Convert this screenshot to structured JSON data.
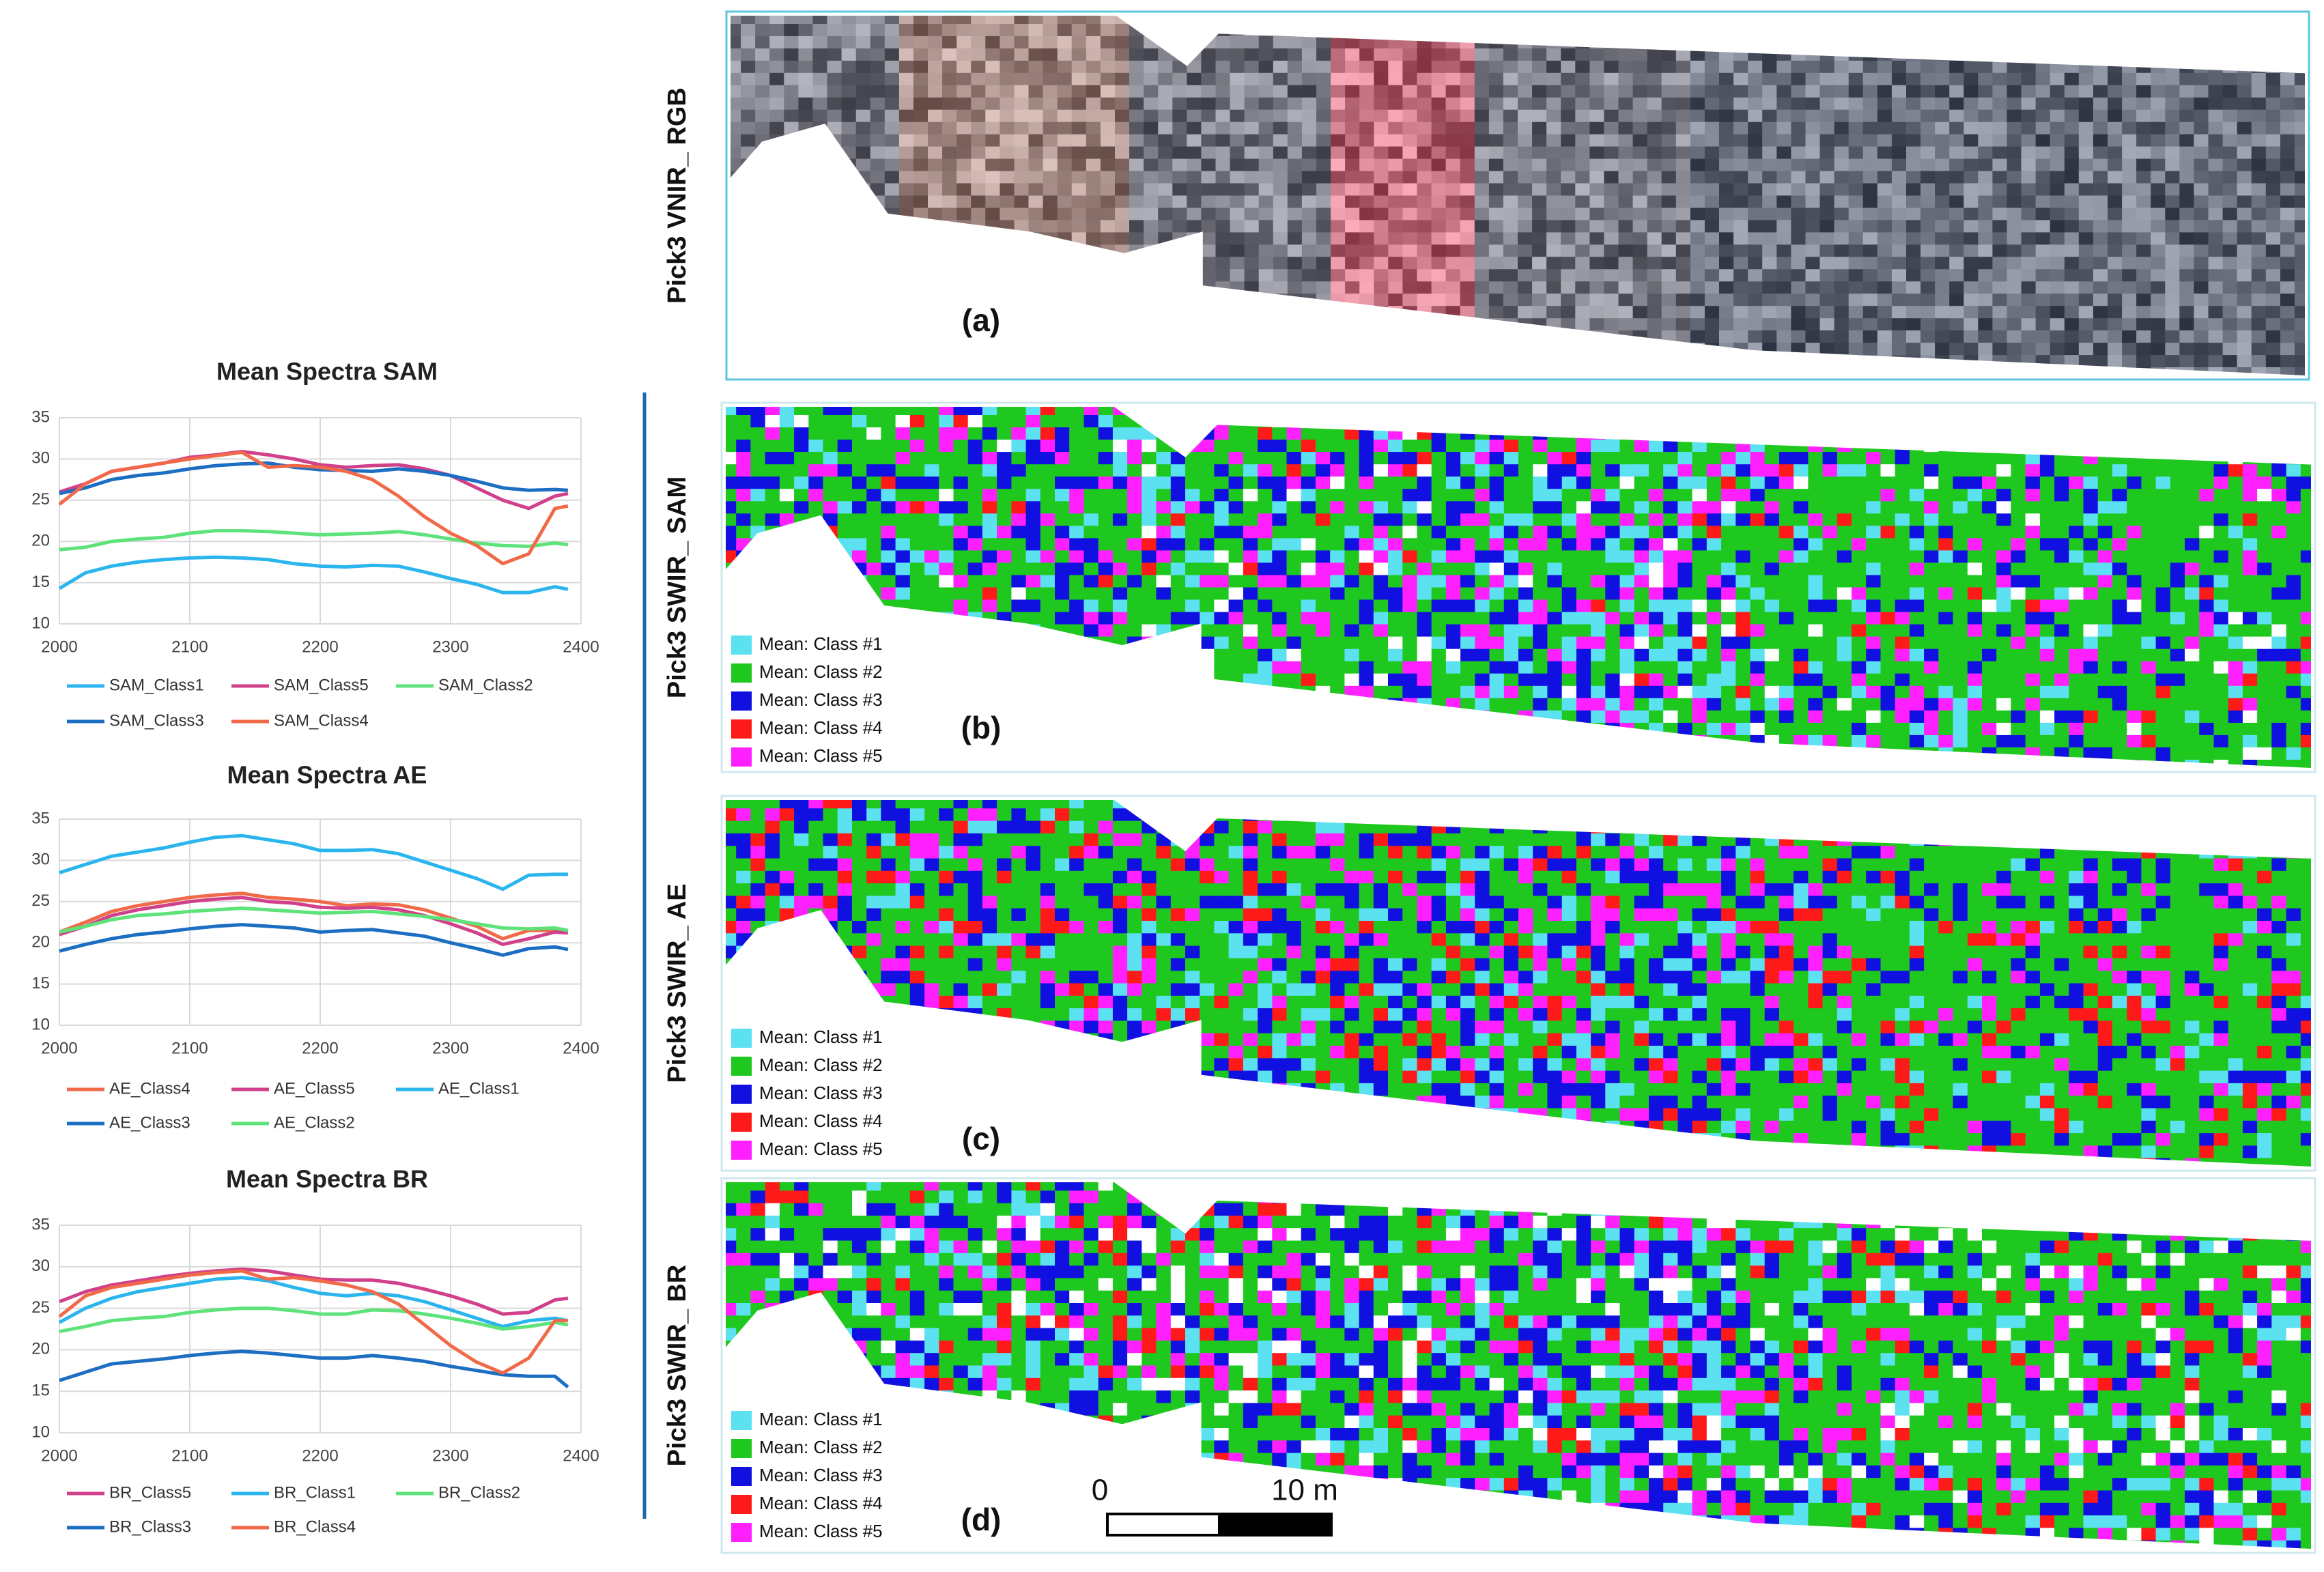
{
  "chart_data": [
    {
      "type": "line",
      "title": "Mean Spectra SAM",
      "x": [
        2000,
        2020,
        2040,
        2060,
        2080,
        2100,
        2120,
        2140,
        2160,
        2180,
        2200,
        2220,
        2240,
        2260,
        2280,
        2300,
        2320,
        2340,
        2360,
        2380,
        2390
      ],
      "xlim": [
        2000,
        2400
      ],
      "xticks": [
        2000,
        2100,
        2200,
        2300,
        2400
      ],
      "ylim": [
        10,
        35
      ],
      "yticks": [
        10,
        15,
        20,
        25,
        30,
        35
      ],
      "grid": true,
      "series": [
        {
          "name": "SAM_Class1",
          "color": "#2bb5ee",
          "values": [
            14.3,
            16.2,
            17,
            17.5,
            17.8,
            18,
            18.1,
            18,
            17.8,
            17.3,
            17,
            16.9,
            17.1,
            17,
            16.3,
            15.5,
            14.8,
            13.8,
            13.8,
            14.5,
            14.2
          ]
        },
        {
          "name": "SAM_Class5",
          "color": "#d1408a",
          "values": [
            26,
            27,
            28.5,
            29,
            29.5,
            30.2,
            30.5,
            30.9,
            30.5,
            30,
            29.3,
            29,
            29.2,
            29.3,
            28.8,
            28,
            26.5,
            25,
            24,
            25.5,
            25.8
          ]
        },
        {
          "name": "SAM_Class2",
          "color": "#5ee27a",
          "values": [
            19,
            19.3,
            20,
            20.3,
            20.5,
            21,
            21.3,
            21.3,
            21.2,
            21,
            20.8,
            20.9,
            21,
            21.2,
            20.8,
            20.3,
            19.8,
            19.5,
            19.4,
            19.8,
            19.6
          ]
        },
        {
          "name": "SAM_Class3",
          "color": "#1b6ec2",
          "values": [
            25.8,
            26.5,
            27.5,
            28,
            28.3,
            28.8,
            29.2,
            29.4,
            29.5,
            29,
            28.7,
            28.6,
            28.5,
            28.8,
            28.5,
            28,
            27.3,
            26.5,
            26.2,
            26.3,
            26.2
          ]
        },
        {
          "name": "SAM_Class4",
          "color": "#f06a4a",
          "values": [
            24.5,
            27,
            28.5,
            29,
            29.5,
            30,
            30.4,
            30.8,
            29,
            29.2,
            29,
            28.5,
            27.5,
            25.5,
            23,
            21,
            19.5,
            17.3,
            18.5,
            24,
            24.3
          ]
        }
      ]
    },
    {
      "type": "line",
      "title": "Mean Spectra AE",
      "x": [
        2000,
        2020,
        2040,
        2060,
        2080,
        2100,
        2120,
        2140,
        2160,
        2180,
        2200,
        2220,
        2240,
        2260,
        2280,
        2300,
        2320,
        2340,
        2360,
        2380,
        2390
      ],
      "xlim": [
        2000,
        2400
      ],
      "xticks": [
        2000,
        2100,
        2200,
        2300,
        2400
      ],
      "ylim": [
        10,
        35
      ],
      "yticks": [
        10,
        15,
        20,
        25,
        30,
        35
      ],
      "grid": true,
      "series": [
        {
          "name": "AE_Class4",
          "color": "#f06a4a",
          "values": [
            21.3,
            22.5,
            23.8,
            24.5,
            25,
            25.5,
            25.8,
            26,
            25.5,
            25.3,
            25,
            24.5,
            24.7,
            24.6,
            24,
            23,
            22,
            20.5,
            21.5,
            21.5,
            21.3
          ]
        },
        {
          "name": "AE_Class5",
          "color": "#d1408a",
          "values": [
            21,
            22,
            23.3,
            24,
            24.5,
            25,
            25.3,
            25.5,
            25,
            24.8,
            24.3,
            24.2,
            24.3,
            24,
            23.3,
            22.3,
            21.2,
            19.8,
            20.5,
            21.3,
            21.2
          ]
        },
        {
          "name": "AE_Class1",
          "color": "#2bb5ee",
          "values": [
            28.5,
            29.5,
            30.5,
            31,
            31.5,
            32.2,
            32.8,
            33,
            32.5,
            32,
            31.2,
            31.2,
            31.3,
            30.8,
            29.8,
            28.8,
            27.8,
            26.5,
            28.2,
            28.3,
            28.3
          ]
        },
        {
          "name": "AE_Class3",
          "color": "#1b6ec2",
          "values": [
            19,
            19.8,
            20.5,
            21,
            21.3,
            21.7,
            22,
            22.2,
            22,
            21.8,
            21.3,
            21.5,
            21.6,
            21.2,
            20.8,
            20,
            19.3,
            18.5,
            19.3,
            19.5,
            19.2
          ]
        },
        {
          "name": "AE_Class2",
          "color": "#5ee27a",
          "values": [
            21.3,
            22,
            22.8,
            23.3,
            23.5,
            23.8,
            24,
            24.2,
            24,
            23.8,
            23.6,
            23.7,
            23.8,
            23.5,
            23.2,
            22.8,
            22.3,
            21.8,
            21.7,
            21.8,
            21.5
          ]
        }
      ]
    },
    {
      "type": "line",
      "title": "Mean Spectra BR",
      "x": [
        2000,
        2020,
        2040,
        2060,
        2080,
        2100,
        2120,
        2140,
        2160,
        2180,
        2200,
        2220,
        2240,
        2260,
        2280,
        2300,
        2320,
        2340,
        2360,
        2380,
        2390
      ],
      "xlim": [
        2000,
        2400
      ],
      "xticks": [
        2000,
        2100,
        2200,
        2300,
        2400
      ],
      "ylim": [
        10,
        35
      ],
      "yticks": [
        10,
        15,
        20,
        25,
        30,
        35
      ],
      "grid": true,
      "series": [
        {
          "name": "BR_Class5",
          "color": "#d1408a",
          "values": [
            25.8,
            27,
            27.8,
            28.3,
            28.8,
            29.2,
            29.5,
            29.7,
            29.5,
            29,
            28.5,
            28.4,
            28.4,
            28,
            27.3,
            26.5,
            25.5,
            24.3,
            24.5,
            26,
            26.2
          ]
        },
        {
          "name": "BR_Class1",
          "color": "#2bb5ee",
          "values": [
            23.3,
            25,
            26.2,
            27,
            27.5,
            28,
            28.5,
            28.7,
            28.3,
            27.5,
            26.8,
            26.5,
            26.8,
            26.5,
            25.8,
            24.8,
            23.8,
            22.8,
            23.5,
            23.8,
            23.5
          ]
        },
        {
          "name": "BR_Class2",
          "color": "#5ee27a",
          "values": [
            22.2,
            22.8,
            23.5,
            23.8,
            24,
            24.5,
            24.8,
            25,
            25,
            24.7,
            24.3,
            24.3,
            24.8,
            24.7,
            24.3,
            23.8,
            23.2,
            22.5,
            22.8,
            23.3,
            23
          ]
        },
        {
          "name": "BR_Class3",
          "color": "#1b6ec2",
          "values": [
            16.3,
            17.3,
            18.3,
            18.6,
            18.9,
            19.3,
            19.6,
            19.8,
            19.6,
            19.3,
            19,
            19,
            19.3,
            19,
            18.6,
            18,
            17.5,
            17,
            16.8,
            16.8,
            15.5
          ]
        },
        {
          "name": "BR_Class4",
          "color": "#f06a4a",
          "values": [
            24,
            26.5,
            27.5,
            28,
            28.5,
            29,
            29.3,
            29.5,
            28.5,
            28.7,
            28.3,
            27.8,
            27,
            25.5,
            23,
            20.5,
            18.5,
            17.2,
            19,
            23.5,
            23.5
          ]
        }
      ]
    }
  ],
  "maps": [
    {
      "side_label": "Pick3 VNIR_ RGB",
      "panel": "(a)"
    },
    {
      "side_label": "Pick3 SWIR_ SAM",
      "panel": "(b)",
      "classes": [
        {
          "name": "Mean: Class #1",
          "color": "#5ce1f0"
        },
        {
          "name": "Mean: Class #2",
          "color": "#1ec81e"
        },
        {
          "name": "Mean: Class #3",
          "color": "#1010e0"
        },
        {
          "name": "Mean: Class #4",
          "color": "#ff1a1a"
        },
        {
          "name": "Mean: Class #5",
          "color": "#ff20ff"
        }
      ]
    },
    {
      "side_label": "Pick3 SWIR_ AE",
      "panel": "(c)",
      "classes": [
        {
          "name": "Mean: Class #1",
          "color": "#5ce1f0"
        },
        {
          "name": "Mean: Class #2",
          "color": "#1ec81e"
        },
        {
          "name": "Mean: Class #3",
          "color": "#1010e0"
        },
        {
          "name": "Mean: Class #4",
          "color": "#ff1a1a"
        },
        {
          "name": "Mean: Class #5",
          "color": "#ff20ff"
        }
      ]
    },
    {
      "side_label": "Pick3 SWIR_ BR",
      "panel": "(d)",
      "classes": [
        {
          "name": "Mean: Class #1",
          "color": "#5ce1f0"
        },
        {
          "name": "Mean: Class #2",
          "color": "#1ec81e"
        },
        {
          "name": "Mean: Class #3",
          "color": "#1010e0"
        },
        {
          "name": "Mean: Class #4",
          "color": "#ff1a1a"
        },
        {
          "name": "Mean: Class #5",
          "color": "#ff20ff"
        }
      ]
    }
  ],
  "scale_bar": {
    "start": "0",
    "end": "10 m"
  }
}
